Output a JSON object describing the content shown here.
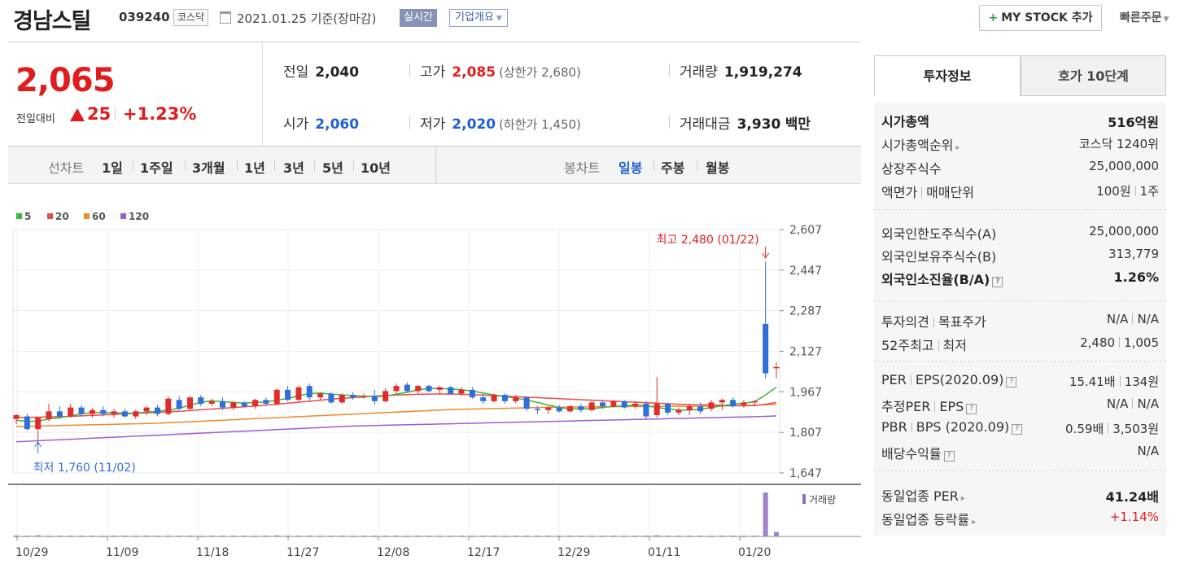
{
  "header": {
    "stock_name": "경남스틸",
    "stock_code": "039240",
    "market": "코스닥",
    "date_text": "2021.01.25  기준(장마감)",
    "realtime_label": "실시간",
    "company_overview_label": "기업개요",
    "mystock_label": "MY STOCK 추가",
    "quick_order_label": "빠른주문"
  },
  "summary": {
    "current_price": "2,065",
    "change_label": "전일대비",
    "change_value": "25",
    "change_pct": "+1.23%",
    "prev_close_label": "전일",
    "prev_close": "2,040",
    "high_label": "고가",
    "high": "2,085",
    "upper_limit": "(상한가 2,680)",
    "volume_label": "거래량",
    "volume": "1,919,274",
    "open_label": "시가",
    "open": "2,060",
    "low_label": "저가",
    "low": "2,020",
    "lower_limit": "(하한가 1,450)",
    "amount_label": "거래대금",
    "amount": "3,930",
    "amount_unit": "백만"
  },
  "period_bar": {
    "line_chart_label": "선차트",
    "periods": [
      "1일",
      "1주일",
      "3개월",
      "1년",
      "3년",
      "5년",
      "10년"
    ],
    "candle_chart_label": "봉차트",
    "candle_periods": [
      "일봉",
      "주봉",
      "월봉"
    ],
    "selected_candle": "일봉"
  },
  "chart_data": {
    "type": "candlestick",
    "legend": [
      {
        "name": "5",
        "color": "#3fb33f"
      },
      {
        "name": "20",
        "color": "#e84c4c"
      },
      {
        "name": "60",
        "color": "#f08a2a"
      },
      {
        "name": "120",
        "color": "#9a5fd0"
      }
    ],
    "y_ticks": [
      "2,607",
      "2,447",
      "2,287",
      "2,127",
      "1,967",
      "1,807",
      "1,647"
    ],
    "y_range": [
      1647,
      2607
    ],
    "x_ticks": [
      "10/29",
      "11/09",
      "11/18",
      "11/27",
      "12/08",
      "12/17",
      "12/29",
      "01/11",
      "01/20"
    ],
    "high_annotation": "최고 2,480 (01/22)",
    "low_annotation": "최저 1,760 (11/02)",
    "volume_label": "거래량",
    "candles": [
      {
        "o": 1860,
        "h": 1880,
        "l": 1840,
        "c": 1875
      },
      {
        "o": 1870,
        "h": 1880,
        "l": 1815,
        "c": 1820
      },
      {
        "o": 1820,
        "h": 1870,
        "l": 1760,
        "c": 1865
      },
      {
        "o": 1860,
        "h": 1920,
        "l": 1850,
        "c": 1890
      },
      {
        "o": 1890,
        "h": 1910,
        "l": 1860,
        "c": 1870
      },
      {
        "o": 1870,
        "h": 1920,
        "l": 1865,
        "c": 1905
      },
      {
        "o": 1905,
        "h": 1915,
        "l": 1870,
        "c": 1880
      },
      {
        "o": 1880,
        "h": 1905,
        "l": 1865,
        "c": 1895
      },
      {
        "o": 1895,
        "h": 1910,
        "l": 1870,
        "c": 1880
      },
      {
        "o": 1880,
        "h": 1900,
        "l": 1865,
        "c": 1890
      },
      {
        "o": 1890,
        "h": 1900,
        "l": 1865,
        "c": 1870
      },
      {
        "o": 1870,
        "h": 1895,
        "l": 1860,
        "c": 1890
      },
      {
        "o": 1890,
        "h": 1910,
        "l": 1875,
        "c": 1905
      },
      {
        "o": 1905,
        "h": 1915,
        "l": 1870,
        "c": 1880
      },
      {
        "o": 1880,
        "h": 1950,
        "l": 1875,
        "c": 1940
      },
      {
        "o": 1935,
        "h": 1950,
        "l": 1895,
        "c": 1900
      },
      {
        "o": 1900,
        "h": 1950,
        "l": 1895,
        "c": 1945
      },
      {
        "o": 1945,
        "h": 1955,
        "l": 1910,
        "c": 1920
      },
      {
        "o": 1920,
        "h": 1940,
        "l": 1910,
        "c": 1930
      },
      {
        "o": 1930,
        "h": 1945,
        "l": 1895,
        "c": 1905
      },
      {
        "o": 1905,
        "h": 1930,
        "l": 1895,
        "c": 1925
      },
      {
        "o": 1925,
        "h": 1930,
        "l": 1905,
        "c": 1910
      },
      {
        "o": 1910,
        "h": 1940,
        "l": 1900,
        "c": 1935
      },
      {
        "o": 1935,
        "h": 1945,
        "l": 1915,
        "c": 1920
      },
      {
        "o": 1920,
        "h": 1980,
        "l": 1915,
        "c": 1975
      },
      {
        "o": 1975,
        "h": 1990,
        "l": 1930,
        "c": 1935
      },
      {
        "o": 1935,
        "h": 1990,
        "l": 1930,
        "c": 1985
      },
      {
        "o": 1990,
        "h": 2000,
        "l": 1930,
        "c": 1945
      },
      {
        "o": 1945,
        "h": 1965,
        "l": 1935,
        "c": 1960
      },
      {
        "o": 1960,
        "h": 1965,
        "l": 1920,
        "c": 1925
      },
      {
        "o": 1925,
        "h": 1960,
        "l": 1920,
        "c": 1955
      },
      {
        "o": 1955,
        "h": 1965,
        "l": 1935,
        "c": 1945
      },
      {
        "o": 1945,
        "h": 1960,
        "l": 1940,
        "c": 1950
      },
      {
        "o": 1950,
        "h": 1975,
        "l": 1915,
        "c": 1930
      },
      {
        "o": 1930,
        "h": 1980,
        "l": 1925,
        "c": 1970
      },
      {
        "o": 1970,
        "h": 2000,
        "l": 1960,
        "c": 1990
      },
      {
        "o": 1995,
        "h": 2005,
        "l": 1965,
        "c": 1970
      },
      {
        "o": 1970,
        "h": 1995,
        "l": 1960,
        "c": 1990
      },
      {
        "o": 1990,
        "h": 1995,
        "l": 1965,
        "c": 1970
      },
      {
        "o": 1975,
        "h": 1990,
        "l": 1960,
        "c": 1985
      },
      {
        "o": 1985,
        "h": 1990,
        "l": 1955,
        "c": 1960
      },
      {
        "o": 1960,
        "h": 1985,
        "l": 1950,
        "c": 1975
      },
      {
        "o": 1975,
        "h": 1985,
        "l": 1940,
        "c": 1945
      },
      {
        "o": 1945,
        "h": 1960,
        "l": 1920,
        "c": 1930
      },
      {
        "o": 1930,
        "h": 1960,
        "l": 1925,
        "c": 1955
      },
      {
        "o": 1955,
        "h": 1960,
        "l": 1920,
        "c": 1930
      },
      {
        "o": 1930,
        "h": 1955,
        "l": 1920,
        "c": 1945
      },
      {
        "o": 1945,
        "h": 1950,
        "l": 1890,
        "c": 1900
      },
      {
        "o": 1900,
        "h": 1910,
        "l": 1880,
        "c": 1895
      },
      {
        "o": 1895,
        "h": 1910,
        "l": 1880,
        "c": 1905
      },
      {
        "o": 1905,
        "h": 1915,
        "l": 1885,
        "c": 1890
      },
      {
        "o": 1890,
        "h": 1915,
        "l": 1885,
        "c": 1910
      },
      {
        "o": 1910,
        "h": 1920,
        "l": 1885,
        "c": 1895
      },
      {
        "o": 1895,
        "h": 1930,
        "l": 1890,
        "c": 1925
      },
      {
        "o": 1925,
        "h": 1935,
        "l": 1900,
        "c": 1910
      },
      {
        "o": 1910,
        "h": 1935,
        "l": 1905,
        "c": 1930
      },
      {
        "o": 1930,
        "h": 1935,
        "l": 1900,
        "c": 1905
      },
      {
        "o": 1910,
        "h": 1930,
        "l": 1900,
        "c": 1920
      },
      {
        "o": 1920,
        "h": 1930,
        "l": 1860,
        "c": 1870
      },
      {
        "o": 1875,
        "h": 2025,
        "l": 1865,
        "c": 1920
      },
      {
        "o": 1920,
        "h": 1925,
        "l": 1875,
        "c": 1885
      },
      {
        "o": 1885,
        "h": 1905,
        "l": 1875,
        "c": 1895
      },
      {
        "o": 1895,
        "h": 1915,
        "l": 1875,
        "c": 1910
      },
      {
        "o": 1910,
        "h": 1925,
        "l": 1880,
        "c": 1890
      },
      {
        "o": 1900,
        "h": 1935,
        "l": 1890,
        "c": 1925
      },
      {
        "o": 1925,
        "h": 1940,
        "l": 1895,
        "c": 1935
      },
      {
        "o": 1935,
        "h": 1945,
        "l": 1905,
        "c": 1910
      },
      {
        "o": 1915,
        "h": 1935,
        "l": 1905,
        "c": 1925
      },
      {
        "o": 1925,
        "h": 1935,
        "l": 1910,
        "c": 1930
      },
      {
        "o": 2235,
        "h": 2480,
        "l": 2020,
        "c": 2040
      },
      {
        "o": 2060,
        "h": 2085,
        "l": 2020,
        "c": 2065
      }
    ],
    "ma5": [
      1855,
      1850,
      1852,
      1860,
      1865,
      1872,
      1880,
      1885,
      1885,
      1885,
      1882,
      1883,
      1887,
      1890,
      1895,
      1902,
      1915,
      1925,
      1932,
      1928,
      1925,
      1922,
      1925,
      1927,
      1935,
      1940,
      1952,
      1960,
      1962,
      1958,
      1955,
      1952,
      1950,
      1948,
      1950,
      1958,
      1965,
      1975,
      1980,
      1980,
      1978,
      1975,
      1970,
      1962,
      1955,
      1948,
      1942,
      1935,
      1925,
      1915,
      1905,
      1900,
      1900,
      1900,
      1905,
      1910,
      1912,
      1915,
      1912,
      1905,
      1900,
      1895,
      1895,
      1898,
      1905,
      1912,
      1918,
      1922,
      1928,
      1955,
      1985
    ],
    "ma20": [
      1865,
      1866,
      1867,
      1868,
      1869,
      1870,
      1872,
      1874,
      1876,
      1878,
      1880,
      1882,
      1884,
      1886,
      1888,
      1890,
      1893,
      1896,
      1899,
      1902,
      1905,
      1908,
      1911,
      1914,
      1918,
      1922,
      1926,
      1930,
      1934,
      1938,
      1941,
      1944,
      1947,
      1950,
      1952,
      1954,
      1956,
      1957,
      1958,
      1958,
      1958,
      1957,
      1956,
      1954,
      1952,
      1950,
      1948,
      1946,
      1944,
      1942,
      1940,
      1938,
      1936,
      1934,
      1932,
      1930,
      1928,
      1926,
      1924,
      1922,
      1920,
      1918,
      1917,
      1916,
      1915,
      1914,
      1913,
      1912,
      1913,
      1918,
      1925
    ],
    "ma60": [
      1830,
      1831,
      1832,
      1833,
      1834,
      1835,
      1836,
      1837,
      1838,
      1839,
      1840,
      1841,
      1842,
      1843,
      1845,
      1847,
      1849,
      1851,
      1853,
      1855,
      1857,
      1859,
      1861,
      1863,
      1865,
      1867,
      1869,
      1871,
      1873,
      1875,
      1877,
      1879,
      1881,
      1883,
      1885,
      1887,
      1889,
      1891,
      1893,
      1895,
      1897,
      1898,
      1899,
      1900,
      1901,
      1902,
      1903,
      1904,
      1905,
      1906,
      1906,
      1907,
      1907,
      1908,
      1908,
      1908,
      1909,
      1909,
      1909,
      1909,
      1910,
      1910,
      1910,
      1910,
      1911,
      1911,
      1912,
      1913,
      1914,
      1916,
      1918
    ],
    "ma120": [
      1770,
      1772,
      1774,
      1776,
      1778,
      1780,
      1782,
      1784,
      1786,
      1788,
      1790,
      1792,
      1794,
      1796,
      1798,
      1800,
      1802,
      1804,
      1806,
      1808,
      1810,
      1812,
      1814,
      1816,
      1818,
      1820,
      1822,
      1824,
      1826,
      1828,
      1830,
      1832,
      1833,
      1834,
      1835,
      1836,
      1837,
      1838,
      1839,
      1840,
      1841,
      1842,
      1843,
      1844,
      1845,
      1846,
      1847,
      1848,
      1849,
      1850,
      1851,
      1852,
      1853,
      1854,
      1855,
      1856,
      1857,
      1858,
      1859,
      1860,
      1861,
      1862,
      1863,
      1864,
      1865,
      1866,
      1867,
      1868,
      1869,
      1870,
      1872
    ],
    "volume": [
      60,
      50,
      80,
      40,
      40,
      30,
      30,
      30,
      30,
      30,
      30,
      30,
      30,
      30,
      60,
      40,
      40,
      30,
      30,
      30,
      30,
      30,
      30,
      30,
      70,
      50,
      50,
      60,
      40,
      40,
      40,
      40,
      40,
      40,
      50,
      60,
      50,
      40,
      40,
      40,
      40,
      40,
      40,
      40,
      40,
      40,
      40,
      40,
      40,
      40,
      40,
      40,
      40,
      40,
      40,
      40,
      40,
      40,
      40,
      80,
      40,
      40,
      40,
      40,
      40,
      40,
      40,
      40,
      40,
      3000,
      300
    ]
  },
  "invest_panel": {
    "tabs": [
      "투자정보",
      "호가 10단계"
    ],
    "market_cap_label": "시가총액",
    "market_cap": "516억원",
    "market_cap_rank_label": "시가총액순위",
    "market_cap_rank": "코스닥 1240위",
    "shares_label": "상장주식수",
    "shares": "25,000,000",
    "par_label_a": "액면가",
    "par_label_b": "매매단위",
    "par_value": "100원",
    "trade_unit": "1주",
    "foreign_limit_label": "외국인한도주식수(A)",
    "foreign_limit": "25,000,000",
    "foreign_hold_label": "외국인보유주식수(B)",
    "foreign_hold": "313,779",
    "foreign_ratio_label": "외국인소진율(B/A)",
    "foreign_ratio": "1.26%",
    "opinion_label_a": "투자의견",
    "opinion_label_b": "목표주가",
    "opinion": "N/A",
    "target_price": "N/A",
    "week52_label_a": "52주최고",
    "week52_label_b": "최저",
    "week52_high": "2,480",
    "week52_low": "1,005",
    "per_label_a": "PER",
    "per_label_b": "EPS(2020.09)",
    "per": "15.41배",
    "eps": "134원",
    "est_per_label_a": "추정PER",
    "est_per_label_b": "EPS",
    "est_per": "N/A",
    "est_eps": "N/A",
    "pbr_label_a": "PBR",
    "pbr_label_b": "BPS (2020.09)",
    "pbr": "0.59배",
    "bps": "3,503원",
    "dividend_label": "배당수익률",
    "dividend": "N/A",
    "industry_per_label": "동일업종 PER",
    "industry_per": "41.24배",
    "industry_change_label": "동일업종 등락률",
    "industry_change": "+1.14%"
  }
}
